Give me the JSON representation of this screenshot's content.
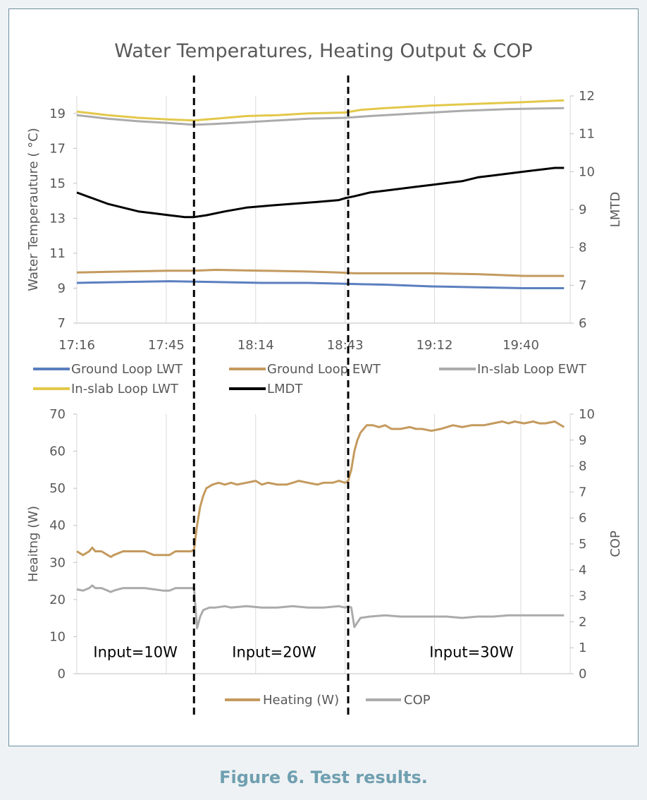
{
  "caption": "Figure 6. Test results.",
  "colors": {
    "ground_lwt": "#5b7fbf",
    "ground_ewt": "#c49a5e",
    "inslab_ewt": "#ababab",
    "inslab_lwt": "#e3c84a",
    "lmdt": "#000000",
    "heating": "#c49a5e",
    "cop": "#ababab",
    "grid": "#d9d9d9",
    "text": "#595959",
    "caption": "#6f9fb0"
  },
  "chart_data": [
    {
      "type": "line",
      "title": "Water Temperatures, Heating Output & COP",
      "ylabel": "Water Temperauture ( °C)",
      "y2label": "LMTD",
      "xlabel": "",
      "x_ticks": [
        "17:16",
        "17:45",
        "18:14",
        "18:43",
        "19:12",
        "19:40"
      ],
      "x_tick_minutes": [
        0,
        29,
        58,
        87,
        116,
        144
      ],
      "xlim_minutes": [
        0,
        160
      ],
      "ylim": [
        7,
        20
      ],
      "y_ticks": [
        7,
        9,
        11,
        13,
        15,
        17,
        19
      ],
      "y2lim": [
        6,
        12
      ],
      "y2_ticks": [
        6,
        7,
        8,
        9,
        10,
        11,
        12
      ],
      "grid": "vertical",
      "legend_position": "bottom",
      "series": [
        {
          "name": "Ground Loop LWT",
          "axis": "left",
          "color_key": "ground_lwt",
          "x": [
            0,
            15,
            30,
            45,
            60,
            75,
            87,
            100,
            115,
            130,
            145,
            158
          ],
          "y": [
            9.3,
            9.35,
            9.4,
            9.35,
            9.3,
            9.3,
            9.25,
            9.2,
            9.1,
            9.05,
            9.0,
            9.0
          ]
        },
        {
          "name": "Ground Loop EWT",
          "axis": "left",
          "color_key": "ground_ewt",
          "x": [
            0,
            15,
            30,
            38,
            45,
            60,
            75,
            85,
            90,
            100,
            115,
            130,
            145,
            158
          ],
          "y": [
            9.9,
            9.95,
            10.0,
            10.0,
            10.05,
            10.0,
            9.95,
            9.9,
            9.85,
            9.85,
            9.85,
            9.8,
            9.7,
            9.7
          ]
        },
        {
          "name": "In-slab Loop EWT",
          "axis": "left",
          "color_key": "inslab_ewt",
          "x": [
            0,
            10,
            20,
            30,
            38,
            45,
            55,
            65,
            75,
            87,
            95,
            110,
            125,
            140,
            158
          ],
          "y": [
            18.9,
            18.7,
            18.55,
            18.45,
            18.35,
            18.4,
            18.5,
            18.6,
            18.7,
            18.75,
            18.85,
            19.0,
            19.15,
            19.25,
            19.3
          ]
        },
        {
          "name": "In-slab Loop LWT",
          "axis": "left",
          "color_key": "inslab_lwt",
          "x": [
            0,
            10,
            20,
            30,
            38,
            45,
            55,
            65,
            75,
            87,
            92,
            100,
            115,
            130,
            145,
            158
          ],
          "y": [
            19.1,
            18.9,
            18.75,
            18.65,
            18.6,
            18.7,
            18.85,
            18.9,
            19.0,
            19.05,
            19.2,
            19.3,
            19.45,
            19.55,
            19.65,
            19.75
          ]
        },
        {
          "name": "LMDT",
          "axis": "right",
          "color_key": "lmdt",
          "x": [
            0,
            5,
            10,
            15,
            20,
            25,
            30,
            35,
            38,
            42,
            48,
            55,
            62,
            70,
            78,
            85,
            87,
            90,
            95,
            100,
            105,
            110,
            115,
            120,
            125,
            130,
            135,
            140,
            145,
            150,
            155,
            158
          ],
          "y": [
            9.45,
            9.3,
            9.15,
            9.05,
            8.95,
            8.9,
            8.85,
            8.8,
            8.8,
            8.85,
            8.95,
            9.05,
            9.1,
            9.15,
            9.2,
            9.25,
            9.3,
            9.35,
            9.45,
            9.5,
            9.55,
            9.6,
            9.65,
            9.7,
            9.75,
            9.85,
            9.9,
            9.95,
            10.0,
            10.05,
            10.1,
            10.1
          ]
        }
      ]
    },
    {
      "type": "line",
      "title": "",
      "ylabel": "Heaitng (W)",
      "y2label": "COP",
      "xlabel": "",
      "xlim_minutes": [
        0,
        160
      ],
      "ylim": [
        0,
        70
      ],
      "y_ticks": [
        0,
        10,
        20,
        30,
        40,
        50,
        60,
        70
      ],
      "y2lim": [
        0,
        10
      ],
      "y2_ticks": [
        0,
        1,
        2,
        3,
        4,
        5,
        6,
        7,
        8,
        9,
        10
      ],
      "grid": "vertical",
      "legend_position": "bottom",
      "annotations": [
        {
          "text": "Input=10W",
          "x_minutes": 19,
          "y": 6
        },
        {
          "text": "Input=20W",
          "x_minutes": 64,
          "y": 6
        },
        {
          "text": "Input=30W",
          "x_minutes": 128,
          "y": 6
        }
      ],
      "dividers_minutes": [
        38,
        88
      ],
      "series": [
        {
          "name": "Heating (W)",
          "axis": "left",
          "color_key": "heating",
          "x": [
            0,
            2,
            4,
            5,
            6,
            8,
            10,
            11,
            12,
            15,
            18,
            20,
            22,
            25,
            28,
            30,
            32,
            35,
            37,
            38,
            39,
            40,
            41,
            42,
            44,
            46,
            48,
            50,
            52,
            55,
            58,
            60,
            62,
            65,
            68,
            70,
            72,
            75,
            78,
            80,
            83,
            85,
            87,
            88,
            89,
            90,
            91,
            92,
            94,
            96,
            98,
            100,
            102,
            105,
            108,
            110,
            112,
            115,
            118,
            120,
            122,
            125,
            128,
            130,
            132,
            135,
            138,
            140,
            142,
            145,
            148,
            150,
            152,
            155,
            158
          ],
          "y": [
            33,
            32,
            33,
            34,
            33,
            33,
            32,
            31.5,
            32,
            33,
            33,
            33,
            33,
            32,
            32,
            32,
            33,
            33,
            33,
            33.5,
            40,
            45,
            48,
            50,
            51,
            51.5,
            51,
            51.5,
            51,
            51.5,
            52,
            51,
            51.5,
            51,
            51,
            51.5,
            52,
            51.5,
            51,
            51.5,
            51.5,
            52,
            51.5,
            52,
            55,
            60,
            63,
            65,
            67,
            67,
            66.5,
            67,
            66,
            66,
            66.5,
            66,
            66,
            65.5,
            66,
            66.5,
            67,
            66.5,
            67,
            67,
            67,
            67.5,
            68,
            67.5,
            68,
            67.5,
            68,
            67.5,
            67.5,
            68,
            66.5
          ]
        },
        {
          "name": "COP",
          "axis": "right",
          "color_key": "cop",
          "x": [
            0,
            2,
            4,
            5,
            6,
            8,
            10,
            11,
            12,
            15,
            18,
            20,
            22,
            25,
            28,
            30,
            32,
            35,
            37,
            38,
            39,
            40,
            41,
            43,
            45,
            48,
            50,
            55,
            60,
            65,
            70,
            75,
            80,
            85,
            87,
            88,
            89,
            90,
            92,
            95,
            100,
            105,
            110,
            115,
            120,
            125,
            130,
            135,
            140,
            145,
            150,
            155,
            158
          ],
          "y": [
            3.25,
            3.2,
            3.3,
            3.4,
            3.3,
            3.3,
            3.2,
            3.15,
            3.2,
            3.3,
            3.3,
            3.3,
            3.3,
            3.25,
            3.2,
            3.2,
            3.3,
            3.3,
            3.3,
            3.3,
            1.75,
            2.2,
            2.45,
            2.55,
            2.55,
            2.6,
            2.55,
            2.6,
            2.55,
            2.55,
            2.6,
            2.55,
            2.55,
            2.6,
            2.55,
            2.6,
            2.55,
            1.8,
            2.15,
            2.2,
            2.25,
            2.2,
            2.2,
            2.2,
            2.2,
            2.15,
            2.2,
            2.2,
            2.25,
            2.25,
            2.25,
            2.25,
            2.25
          ]
        }
      ]
    }
  ]
}
